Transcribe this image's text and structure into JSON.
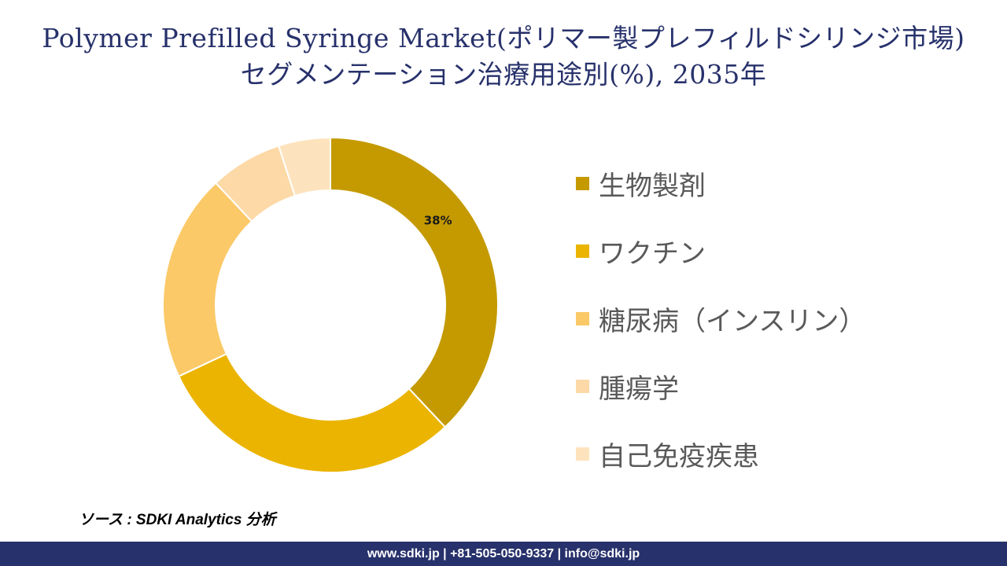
{
  "title": {
    "line1": "Polymer Prefilled Syringe Market(ポリマー製プレフィルドシリンジ市場)",
    "line2": "セグメンテーション治療用途別(%), 2035年"
  },
  "chart_data": {
    "type": "pie",
    "donut": true,
    "categories": [
      "生物製剤",
      "ワクチン",
      "糖尿病（インスリン）",
      "腫瘍学",
      "自己免疫疾患"
    ],
    "values": [
      38,
      30,
      20,
      7,
      5
    ],
    "value_labels": [
      "38%",
      "",
      "",
      "",
      ""
    ],
    "colors": [
      "#c49a00",
      "#ebb400",
      "#fbc968",
      "#fcd9a6",
      "#fde3bd"
    ],
    "legend_position": "right"
  },
  "source": "ソース : SDKI Analytics 分析",
  "footer": "www.sdki.jp | +81-505-050-9337 | info@sdki.jp"
}
